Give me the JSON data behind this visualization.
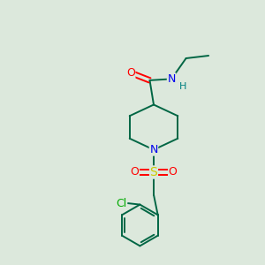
{
  "bg_color": "#dce8dc",
  "atom_colors": {
    "C": "#000000",
    "N": "#0000ee",
    "O": "#ff0000",
    "S": "#cccc00",
    "Cl": "#00aa00",
    "H": "#008080"
  },
  "bond_color": "#006644",
  "bond_lw": 1.4,
  "font_size": 9,
  "fig_w": 3.0,
  "fig_h": 3.0,
  "dpi": 100,
  "xlim": [
    0,
    10
  ],
  "ylim": [
    0,
    10
  ]
}
